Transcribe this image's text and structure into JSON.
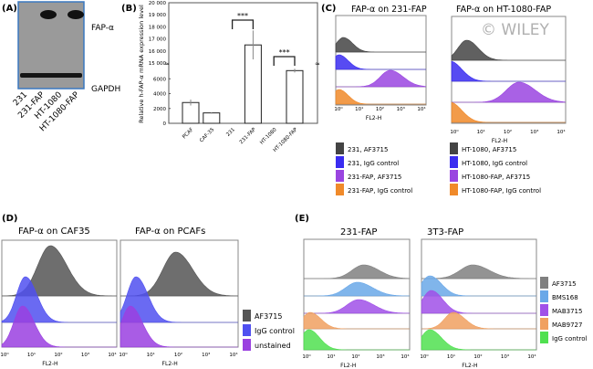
{
  "panels": {
    "a": {
      "label": "(A)",
      "bands": [
        "FAP-α",
        "GAPDH"
      ],
      "lanes": [
        "231",
        "231-FAP",
        "HT-1080",
        "HT-1080-FAP"
      ]
    },
    "b": {
      "label": "(B)"
    },
    "c": {
      "label": "(C)",
      "titles": [
        "FAP-α on 231-FAP",
        "FAP-α on HT-1080-FAP"
      ],
      "watermark": "© WILEY"
    },
    "d": {
      "label": "(D)",
      "titles": [
        "FAP-α on CAF35",
        "FAP-α on PCAFs"
      ]
    },
    "e": {
      "label": "(E)",
      "titles": [
        "231-FAP",
        "3T3-FAP"
      ]
    }
  },
  "flow_axis": {
    "xlabel": "FL2-H",
    "ticks": [
      "10⁰",
      "10¹",
      "10²",
      "10³",
      "10⁴"
    ],
    "scale": "log"
  },
  "chart_data": [
    {
      "type": "bar",
      "panel": "B",
      "ylabel": "Relative h-FAP-α mRNA expression level",
      "categories": [
        "PCAF",
        "CAF-35",
        "231",
        "231-FAP",
        "HT-1080",
        "HT-1080-FAP"
      ],
      "values": [
        2800,
        1400,
        0,
        16500,
        0,
        7100
      ],
      "errors": [
        400,
        100,
        0,
        1200,
        0,
        250
      ],
      "y_axis_broken": true,
      "ylim_lower": [
        0,
        8000
      ],
      "ylim_upper": [
        15000,
        20000
      ],
      "yticks_lower": [
        "0",
        "2000",
        "4000",
        "6000"
      ],
      "yticks_upper": [
        "15 000",
        "16 000",
        "17 000",
        "18 000",
        "19 000",
        "20 000"
      ],
      "significance": [
        {
          "pair": [
            "231",
            "231-FAP"
          ],
          "label": "***"
        },
        {
          "pair": [
            "HT-1080",
            "HT-1080-FAP"
          ],
          "label": "***"
        }
      ]
    },
    {
      "type": "histogram",
      "panel": "C-left",
      "legend": [
        {
          "name": "231, AF3715",
          "color": "#444444",
          "peak_log10": 0.3
        },
        {
          "name": "231, IgG control",
          "color": "#3a2cf0",
          "peak_log10": 0.1
        },
        {
          "name": "231-FAP, AF3715",
          "color": "#9a45e0",
          "peak_log10": 2.45
        },
        {
          "name": "231-FAP, IgG control",
          "color": "#f08a2a",
          "peak_log10": 0.1
        }
      ]
    },
    {
      "type": "histogram",
      "panel": "C-right",
      "legend": [
        {
          "name": "HT-1080, AF3715",
          "color": "#444444",
          "peak_log10": 0.5
        },
        {
          "name": "HT-1080, IgG control",
          "color": "#3a2cf0",
          "peak_log10": -0.1
        },
        {
          "name": "HT-1080-FAP, AF3715",
          "color": "#9a45e0",
          "peak_log10": 2.4
        },
        {
          "name": "HT-1080-FAP, IgG control",
          "color": "#f08a2a",
          "peak_log10": -0.1
        }
      ]
    },
    {
      "type": "histogram",
      "panel": "D",
      "legend": [
        {
          "name": "AF3715",
          "color": "#555555",
          "peak_log10": [
            1.7,
            1.9
          ]
        },
        {
          "name": "IgG control",
          "color": "#5050f0",
          "peak_log10": [
            0.8,
            0.5
          ]
        },
        {
          "name": "unstained",
          "color": "#9a40e0",
          "peak_log10": [
            0.7,
            0.3
          ]
        }
      ]
    },
    {
      "type": "histogram",
      "panel": "E",
      "legend": [
        {
          "name": "AF3715",
          "color": "#808080",
          "peak_log10": [
            2.3,
            1.8
          ]
        },
        {
          "name": "BMS168",
          "color": "#6aa8e8",
          "peak_log10": [
            2.05,
            0.25
          ]
        },
        {
          "name": "MAB3715",
          "color": "#a050e8",
          "peak_log10": [
            2.1,
            0.3
          ]
        },
        {
          "name": "MAB9727",
          "color": "#f0a060",
          "peak_log10": [
            0.2,
            1.1
          ]
        },
        {
          "name": "IgG control",
          "color": "#50e050",
          "peak_log10": [
            0.15,
            0.25
          ]
        }
      ]
    }
  ]
}
